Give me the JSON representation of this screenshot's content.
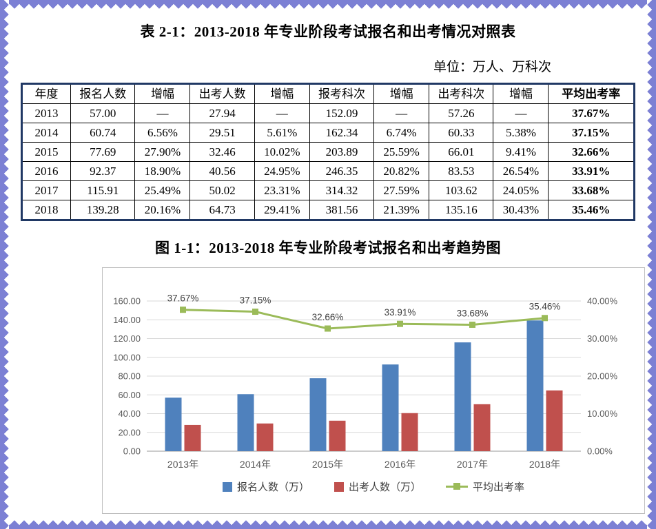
{
  "page": {
    "table_title": "表 2-1：2013-2018 年专业阶段考试报名和出考情况对照表",
    "unit_note": "单位：万人、万科次",
    "figure_title": "图 1-1：2013-2018 年专业阶段考试报名和出考趋势图",
    "border_color": "#7c80d4"
  },
  "table": {
    "columns": [
      "年度",
      "报名人数",
      "增幅",
      "出考人数",
      "增幅",
      "报考科次",
      "增幅",
      "出考科次",
      "增幅",
      "平均出考率"
    ],
    "rows": [
      [
        "2013",
        "57.00",
        "—",
        "27.94",
        "—",
        "152.09",
        "—",
        "57.26",
        "—",
        "37.67%"
      ],
      [
        "2014",
        "60.74",
        "6.56%",
        "29.51",
        "5.61%",
        "162.34",
        "6.74%",
        "60.33",
        "5.38%",
        "37.15%"
      ],
      [
        "2015",
        "77.69",
        "27.90%",
        "32.46",
        "10.02%",
        "203.89",
        "25.59%",
        "66.01",
        "9.41%",
        "32.66%"
      ],
      [
        "2016",
        "92.37",
        "18.90%",
        "40.56",
        "24.95%",
        "246.35",
        "20.82%",
        "83.53",
        "26.54%",
        "33.91%"
      ],
      [
        "2017",
        "115.91",
        "25.49%",
        "50.02",
        "23.31%",
        "314.32",
        "27.59%",
        "103.62",
        "24.05%",
        "33.68%"
      ],
      [
        "2018",
        "139.28",
        "20.16%",
        "64.73",
        "29.41%",
        "381.56",
        "21.39%",
        "135.16",
        "30.43%",
        "35.46%"
      ]
    ]
  },
  "chart_data": {
    "type": "bar",
    "subtype": "combo-bar-line-dual-axis",
    "categories": [
      "2013年",
      "2014年",
      "2015年",
      "2016年",
      "2017年",
      "2018年"
    ],
    "series": [
      {
        "name": "报名人数（万）",
        "chart": "bar",
        "axis": "left",
        "color": "#4f81bd",
        "values": [
          57.0,
          60.74,
          77.69,
          92.37,
          115.91,
          139.28
        ]
      },
      {
        "name": "出考人数（万）",
        "chart": "bar",
        "axis": "left",
        "color": "#c0504d",
        "values": [
          27.94,
          29.51,
          32.46,
          40.56,
          50.02,
          64.73
        ]
      },
      {
        "name": "平均出考率",
        "chart": "line",
        "axis": "right",
        "color": "#9bbb59",
        "values": [
          37.67,
          37.15,
          32.66,
          33.91,
          33.68,
          35.46
        ],
        "point_labels": [
          "37.67%",
          "37.15%",
          "32.66%",
          "33.91%",
          "33.68%",
          "35.46%"
        ]
      }
    ],
    "left_axis": {
      "min": 0,
      "max": 160,
      "step": 20,
      "labels": [
        "0.00",
        "20.00",
        "40.00",
        "60.00",
        "80.00",
        "100.00",
        "120.00",
        "140.00",
        "160.00"
      ]
    },
    "right_axis": {
      "min": 0,
      "max": 40,
      "step": 10,
      "labels": [
        "0.00%",
        "10.00%",
        "20.00%",
        "30.00%",
        "40.00%"
      ]
    },
    "grid": true,
    "legend_position": "bottom",
    "colors": {
      "grid": "#d9d9d9",
      "axis": "#9a9a9a",
      "tick_text": "#595959",
      "point_label_text": "#404040"
    }
  }
}
